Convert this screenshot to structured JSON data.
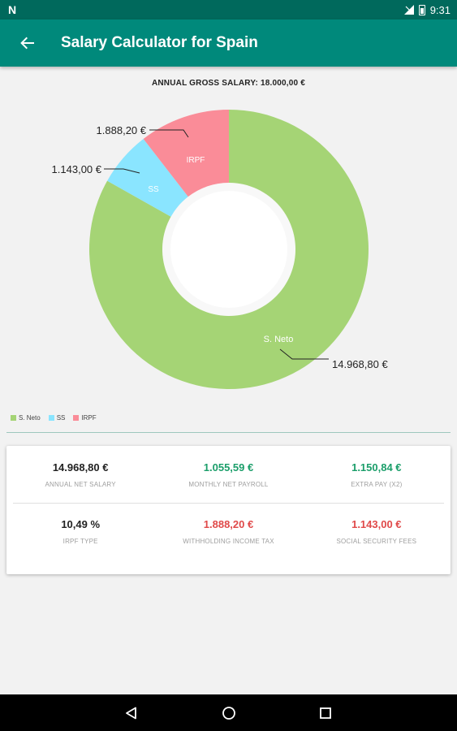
{
  "status_bar": {
    "time": "9:31",
    "left_icon": "N"
  },
  "app_bar": {
    "title": "Salary Calculator for Spain"
  },
  "gross": {
    "label": "ANNUAL GROSS SALARY: 18.000,00 €"
  },
  "chart_data": {
    "type": "pie",
    "slices": [
      {
        "name": "S. Neto",
        "value": 14968.8,
        "label": "14.968,80 €",
        "color": "#a5d475"
      },
      {
        "name": "SS",
        "value": 1143.0,
        "label": "1.143,00 €",
        "color": "#8ae5ff"
      },
      {
        "name": "IRPF",
        "value": 1888.2,
        "label": "1.888,20 €",
        "color": "#fa8c98"
      }
    ],
    "legend_placement": "bottom-left"
  },
  "summary": {
    "row1": [
      {
        "value": "14.968,80 €",
        "label": "ANNUAL NET SALARY",
        "tone": "dark"
      },
      {
        "value": "1.055,59 €",
        "label": "MONTHLY NET PAYROLL",
        "tone": "green"
      },
      {
        "value": "1.150,84 €",
        "label": "EXTRA PAY (X2)",
        "tone": "green"
      }
    ],
    "row2": [
      {
        "value": "10,49 %",
        "label": "IRPF TYPE",
        "tone": "dark"
      },
      {
        "value": "1.888,20 €",
        "label": "WITHHOLDING INCOME TAX",
        "tone": "red"
      },
      {
        "value": "1.143,00 €",
        "label": "SOCIAL SECURITY FEES",
        "tone": "red"
      }
    ]
  },
  "icons": {
    "back": "arrow-back-icon",
    "nav_back": "triangle-back-icon",
    "nav_home": "circle-home-icon",
    "nav_recents": "square-recents-icon"
  }
}
